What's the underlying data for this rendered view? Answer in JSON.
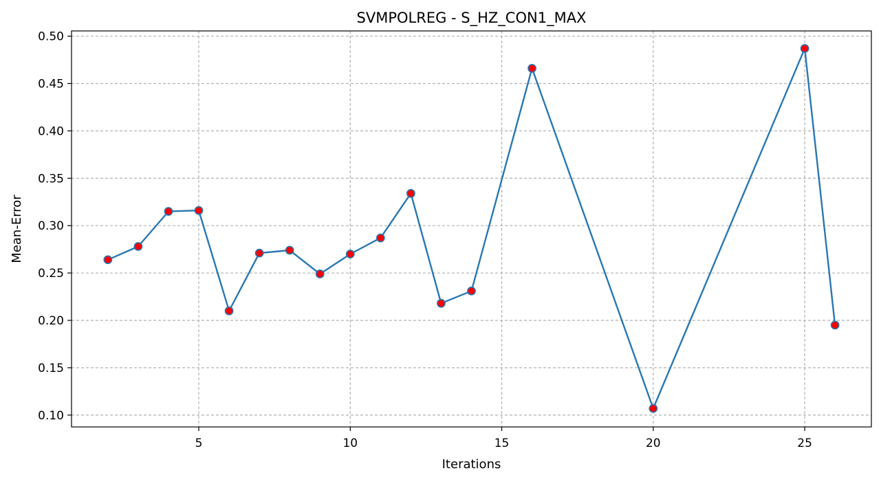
{
  "chart_data": {
    "type": "line",
    "title": "SVMPOLREG - S_HZ_CON1_MAX",
    "xlabel": "Iterations",
    "ylabel": "Mean-Error",
    "xlim": [
      0.8,
      27.2
    ],
    "ylim": [
      0.0875,
      0.5055
    ],
    "xticks": [
      5,
      10,
      15,
      20,
      25
    ],
    "xtick_labels": [
      "5",
      "10",
      "15",
      "20",
      "25"
    ],
    "yticks": [
      0.1,
      0.15,
      0.2,
      0.25,
      0.3,
      0.35,
      0.4,
      0.45,
      0.5
    ],
    "ytick_labels": [
      "0.10",
      "0.15",
      "0.20",
      "0.25",
      "0.30",
      "0.35",
      "0.40",
      "0.45",
      "0.50"
    ],
    "grid": true,
    "grid_style": "dashed",
    "line_color": "#2877b2",
    "marker_color": "#ff0000",
    "x": [
      2,
      3,
      4,
      5,
      6,
      7,
      8,
      9,
      10,
      11,
      12,
      13,
      14,
      16,
      20,
      25,
      26
    ],
    "series": [
      {
        "values": [
          0.264,
          0.278,
          0.315,
          0.316,
          0.21,
          0.271,
          0.274,
          0.249,
          0.27,
          0.287,
          0.334,
          0.218,
          0.231,
          0.466,
          0.107,
          0.487,
          0.195
        ]
      }
    ]
  }
}
